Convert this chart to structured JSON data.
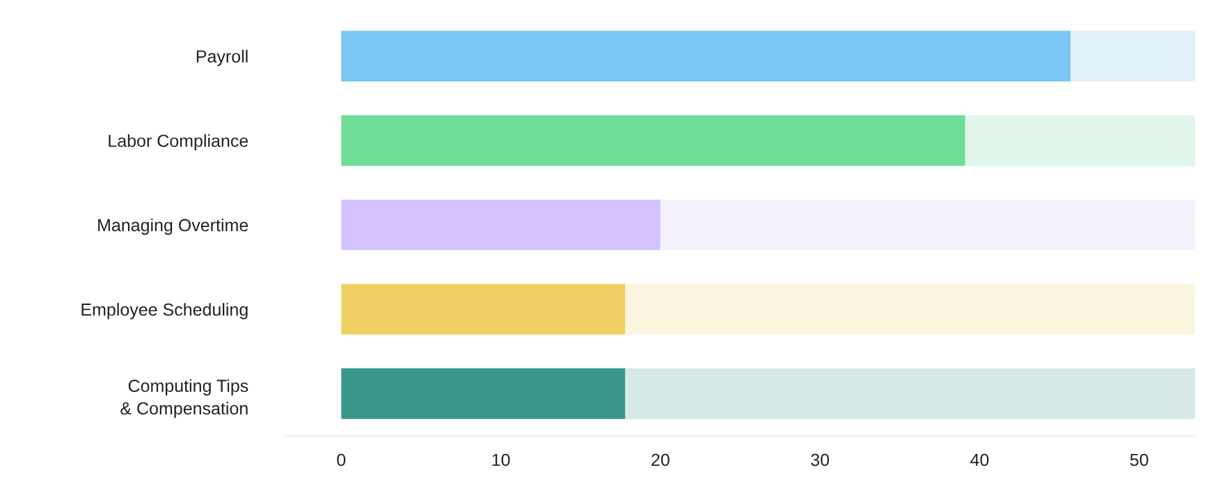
{
  "chart_data": {
    "type": "bar",
    "orientation": "horizontal",
    "stacked": true,
    "categories": [
      "Payroll",
      "Labor Compliance",
      "Managing Overtime",
      "Employee Scheduling",
      "Computing Tips\n& Compensation"
    ],
    "series": [
      {
        "colors": [
          "#79c7f2",
          "#6fdc98",
          "#d4c2fe",
          "#efcf62",
          "#3b968a"
        ],
        "values": [
          45.7,
          39.1,
          20,
          17.8,
          17.8
        ]
      },
      {
        "colors": [
          "#e1f1fa",
          "#e0f6ea",
          "#f4f1fd",
          "#fbf4df",
          "#d6e9e6"
        ],
        "values": [
          7.8,
          14.4,
          33.5,
          35.7,
          35.7
        ]
      }
    ],
    "xlim": [
      -3.5,
      53.5
    ],
    "xticks": [
      0,
      10,
      20,
      30,
      40,
      50
    ],
    "grid": false,
    "legend": false
  }
}
